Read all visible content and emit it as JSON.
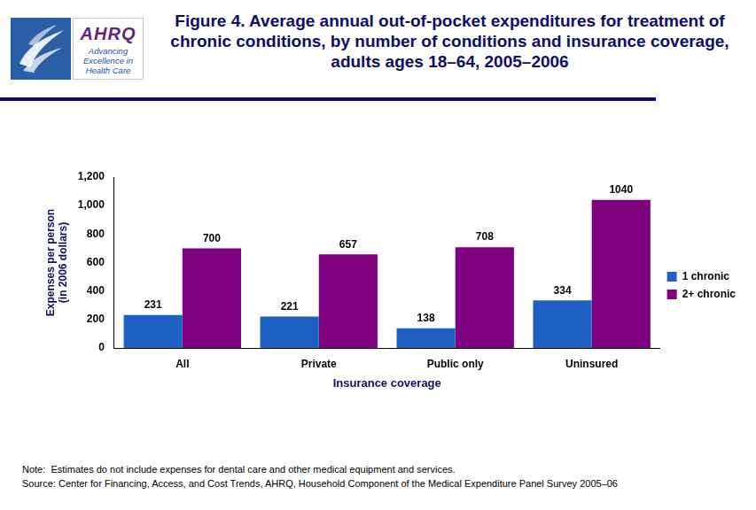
{
  "chart_data": {
    "type": "bar",
    "title": "Figure 4. Average annual out-of-pocket expenditures for treatment of chronic conditions, by number of conditions and insurance coverage, adults ages 18–64, 2005–2006",
    "x_label": "Insurance coverage",
    "y_label": [
      "Expenses per person",
      "(in 2006 dollars)"
    ],
    "categories": [
      "All",
      "Private",
      "Public only",
      "Uninsured"
    ],
    "series": [
      {
        "name": "1 chronic",
        "color": "#1f60c4",
        "values": [
          231,
          221,
          138,
          334
        ]
      },
      {
        "name": "2+ chronic",
        "color": "#7f007f",
        "values": [
          700,
          657,
          708,
          1040
        ]
      }
    ],
    "ylim": [
      0,
      1200
    ],
    "yticks": [
      0,
      200,
      400,
      600,
      800,
      {
        "value": 1000,
        "label": "1,000"
      },
      {
        "value": 1200,
        "label": "1,200"
      }
    ],
    "grid": false,
    "legend": "right",
    "data_labels": true,
    "notes": [
      "Note:  Estimates do not include expenses for dental care and other medical equipment and services.",
      "Source: Center for Financing, Access, and Cost Trends, AHRQ, Household Component of the Medical Expenditure Panel Survey 2005–06"
    ]
  },
  "logo": {
    "name": "AHRQ",
    "tagline": "Advancing Excellence in Health Care"
  }
}
